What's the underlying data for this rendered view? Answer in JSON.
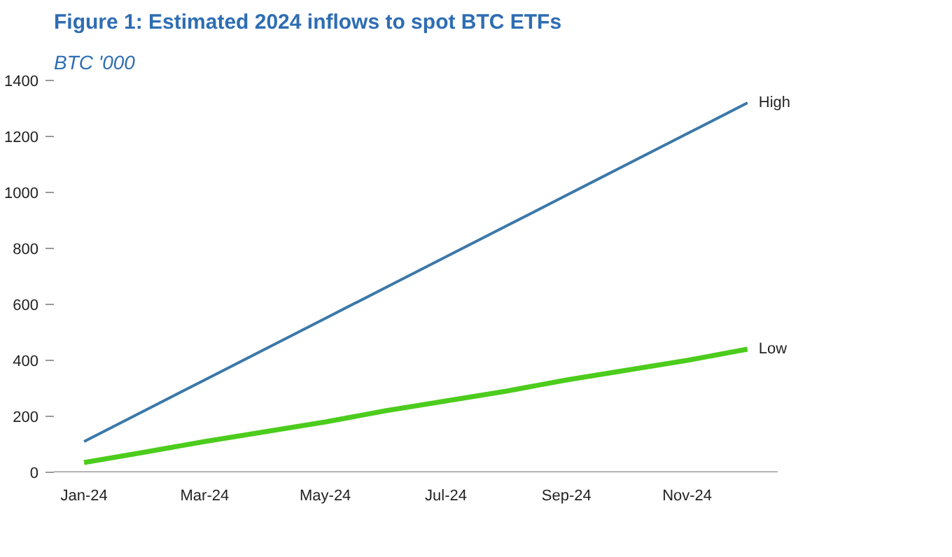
{
  "chart_data": {
    "type": "line",
    "title": "Figure 1: Estimated 2024 inflows to spot BTC ETFs",
    "subtitle": "BTC '000",
    "categories": [
      "Jan-24",
      null,
      "Mar-24",
      null,
      "May-24",
      null,
      "Jul-24",
      null,
      "Sep-24",
      null,
      "Nov-24",
      null
    ],
    "series": [
      {
        "name": "High",
        "color": "#3b78a9",
        "values": [
          110,
          220,
          330,
          440,
          550,
          660,
          770,
          880,
          990,
          1100,
          1210,
          1320
        ]
      },
      {
        "name": "Low",
        "color": "#4ccc1c",
        "values": [
          35,
          72,
          110,
          145,
          180,
          220,
          255,
          290,
          330,
          365,
          400,
          440
        ]
      }
    ],
    "ylim": [
      0,
      1400
    ],
    "yticks": [
      0,
      200,
      400,
      600,
      800,
      1000,
      1200,
      1400
    ],
    "grid": false
  }
}
